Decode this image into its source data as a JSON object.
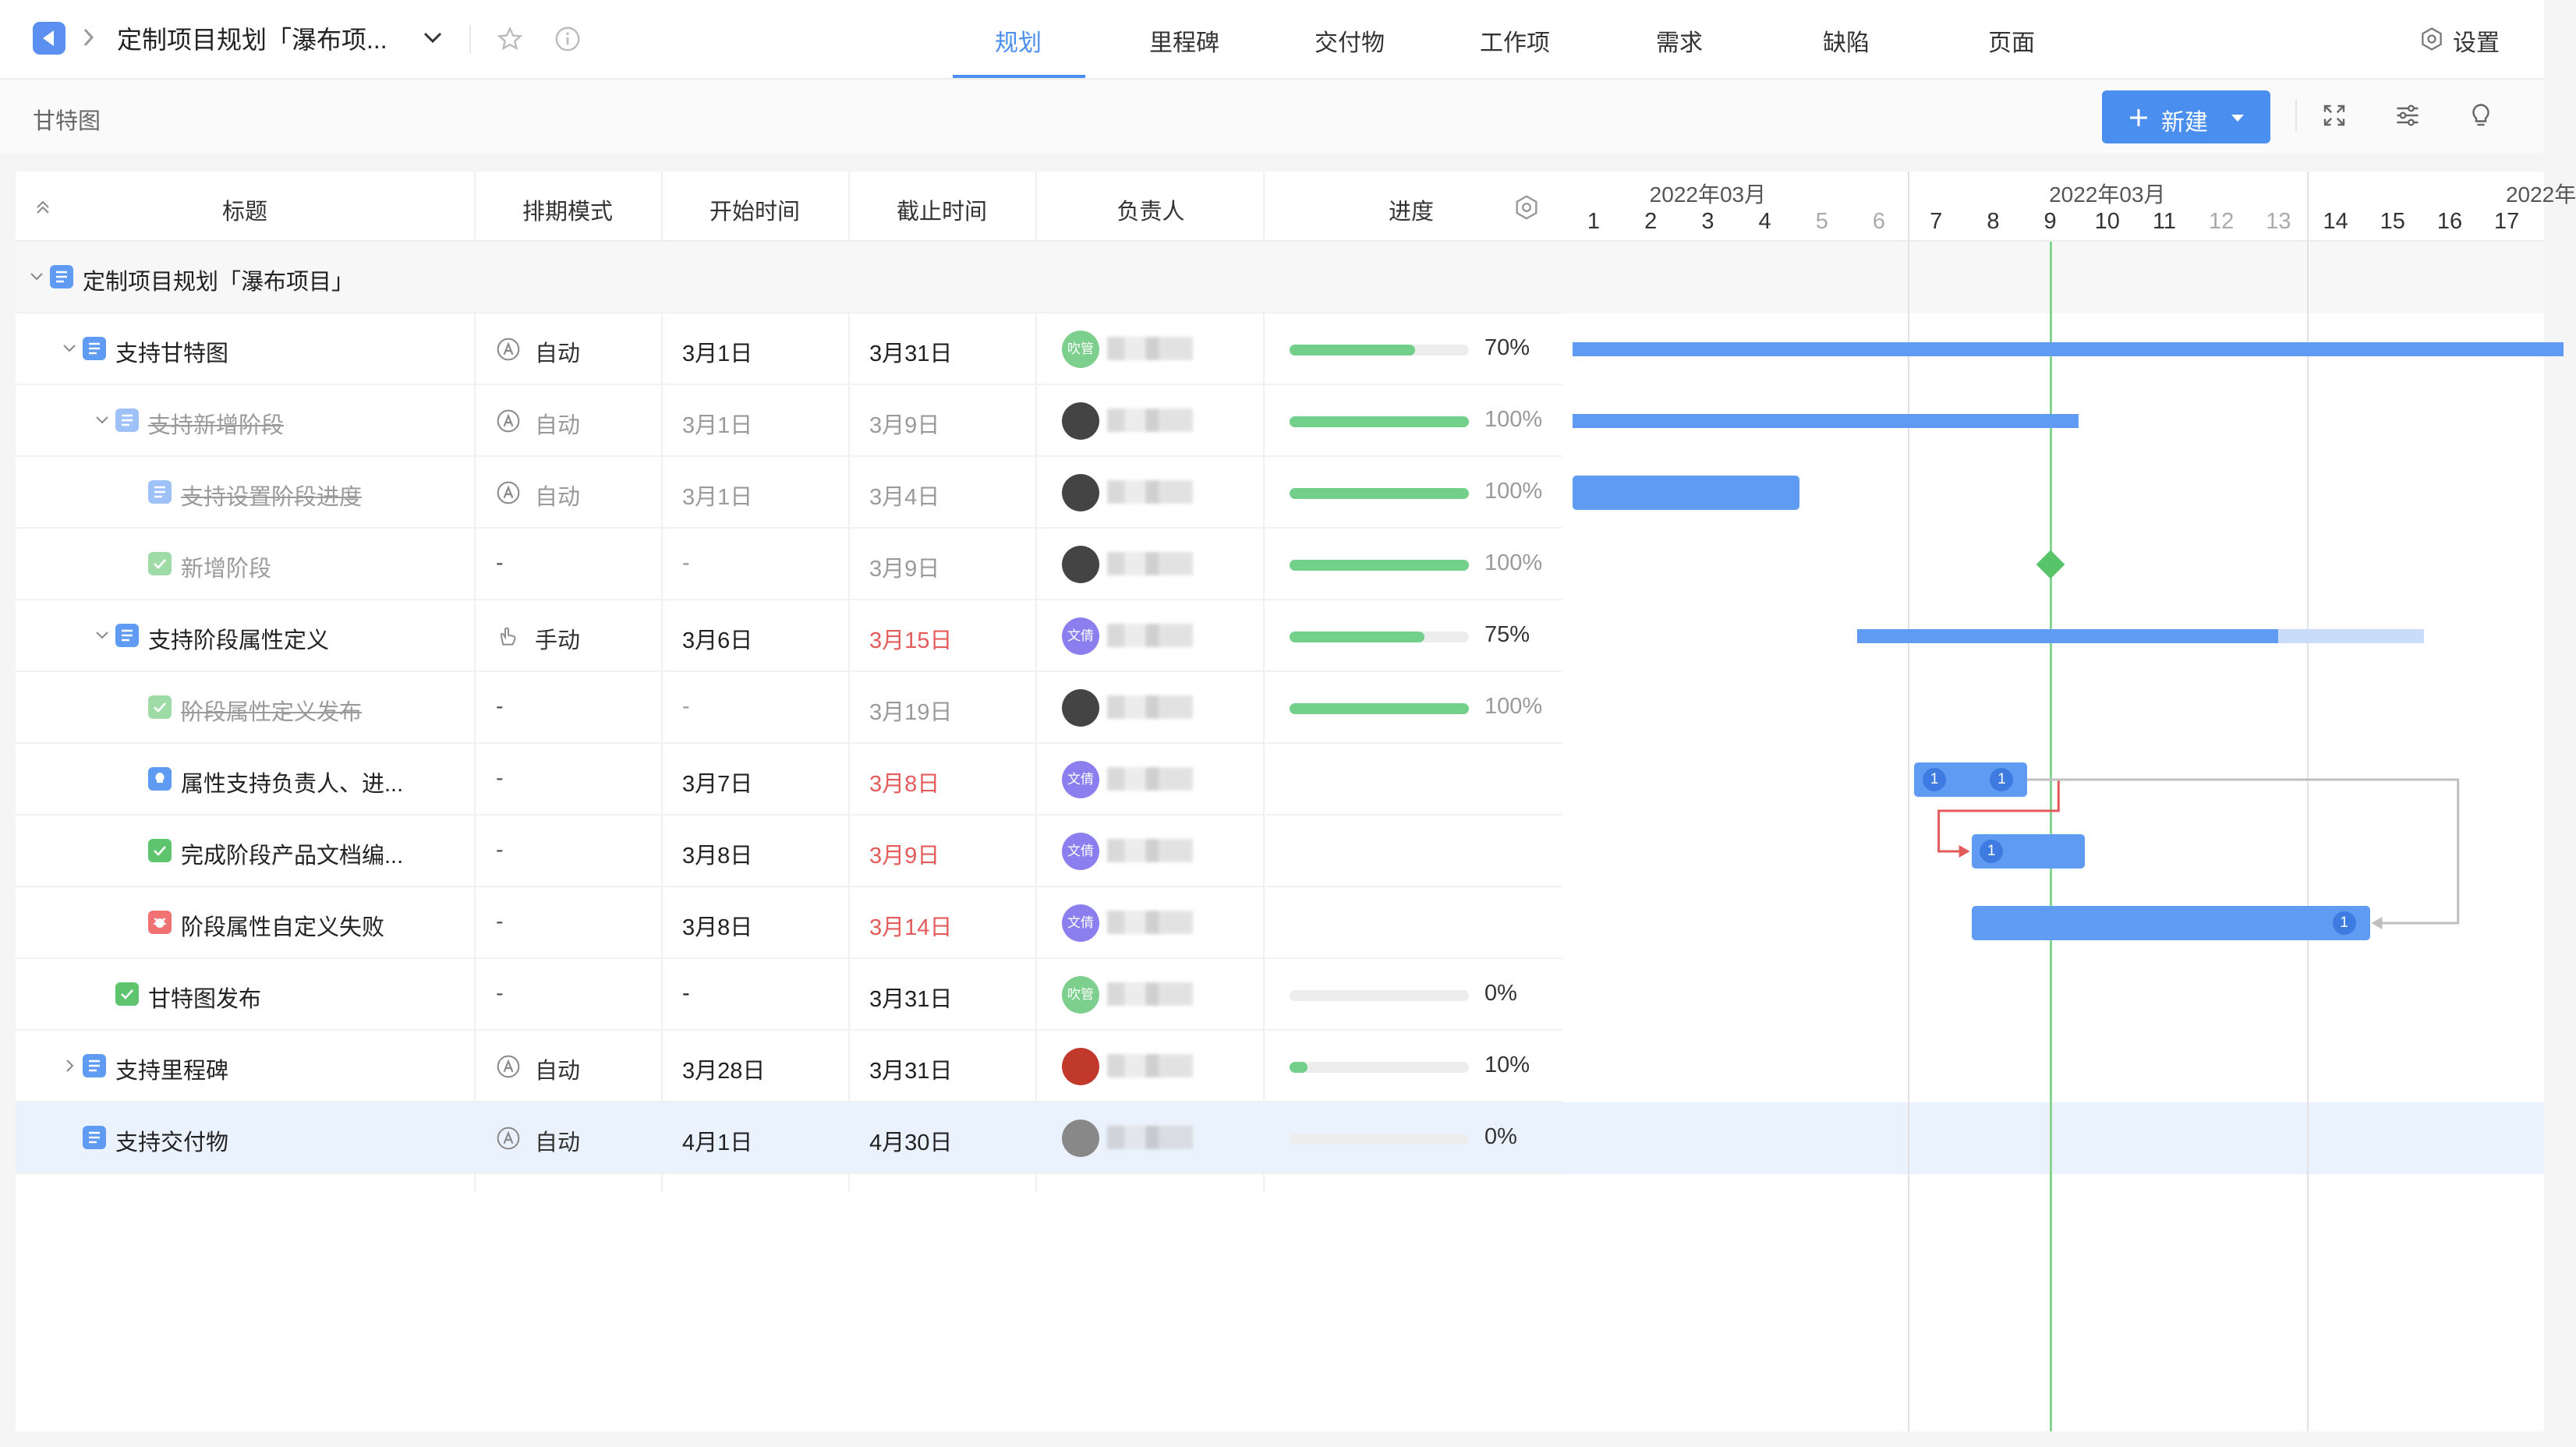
{
  "app": {
    "project_title": "定制项目规划「瀑布项...",
    "settings_label": "设置",
    "view_name": "甘特图",
    "new_button_label": "新建"
  },
  "tabs": [
    {
      "label": "规划",
      "active": true
    },
    {
      "label": "里程碑",
      "active": false
    },
    {
      "label": "交付物",
      "active": false
    },
    {
      "label": "工作项",
      "active": false
    },
    {
      "label": "需求",
      "active": false
    },
    {
      "label": "缺陷",
      "active": false
    },
    {
      "label": "页面",
      "active": false
    }
  ],
  "columns": {
    "title": "标题",
    "schedule": "排期模式",
    "start": "开始时间",
    "end": "截止时间",
    "assignee": "负责人",
    "progress": "进度"
  },
  "rows": [
    {
      "title": "定制项目规划「瀑布项目」",
      "type": "project",
      "level": 0,
      "expand": "down",
      "group": true
    },
    {
      "title": "支持甘特图",
      "type": "stage",
      "level": 1,
      "expand": "down",
      "schedule": "自动",
      "schedule_icon": "auto-icon",
      "start": "3月1日",
      "end": "3月31日",
      "avatar_text": "吹管",
      "avatar_color": "#7ccf8d",
      "progress": 70,
      "progress_text": "70%"
    },
    {
      "title": "支持新增阶段",
      "type": "stage",
      "level": 2,
      "expand": "down",
      "done": true,
      "strike": true,
      "schedule": "自动",
      "schedule_icon": "auto-icon",
      "start": "3月1日",
      "end": "3月9日",
      "avatar_text": "",
      "avatar_color": "#444444",
      "progress": 100,
      "progress_text": "100%"
    },
    {
      "title": "支持设置阶段进度",
      "type": "stage",
      "level": 3,
      "done": true,
      "strike": true,
      "schedule": "自动",
      "schedule_icon": "auto-icon",
      "start": "3月1日",
      "end": "3月4日",
      "avatar_text": "",
      "avatar_color": "#444444",
      "progress": 100,
      "progress_text": "100%"
    },
    {
      "title": "新增阶段",
      "type": "milestone",
      "level": 3,
      "done": true,
      "schedule": "-",
      "start": "-",
      "end": "3月9日",
      "avatar_text": "",
      "avatar_color": "#444444",
      "progress": 100,
      "progress_text": "100%"
    },
    {
      "title": "支持阶段属性定义",
      "type": "stage",
      "level": 2,
      "expand": "down",
      "schedule": "手动",
      "schedule_icon": "hand-icon",
      "start": "3月6日",
      "end": "3月15日",
      "end_overdue": true,
      "avatar_text": "文倩",
      "avatar_color": "#8b7ff0",
      "progress": 75,
      "progress_text": "75%"
    },
    {
      "title": "阶段属性定义发布",
      "type": "milestone",
      "level": 3,
      "done": true,
      "strike": true,
      "schedule": "-",
      "start": "-",
      "end": "3月19日",
      "avatar_text": "",
      "avatar_color": "#444444",
      "progress": 100,
      "progress_text": "100%"
    },
    {
      "title": "属性支持负责人、进...",
      "type": "requirement",
      "level": 3,
      "schedule": "-",
      "start": "3月7日",
      "end": "3月8日",
      "end_overdue": true,
      "avatar_text": "文倩",
      "avatar_color": "#8b7ff0"
    },
    {
      "title": "完成阶段产品文档编...",
      "type": "task",
      "level": 3,
      "schedule": "-",
      "start": "3月8日",
      "end": "3月9日",
      "end_overdue": true,
      "avatar_text": "文倩",
      "avatar_color": "#8b7ff0"
    },
    {
      "title": "阶段属性自定义失败",
      "type": "bug",
      "level": 3,
      "schedule": "-",
      "start": "3月8日",
      "end": "3月14日",
      "end_overdue": true,
      "avatar_text": "文倩",
      "avatar_color": "#8b7ff0"
    },
    {
      "title": "甘特图发布",
      "type": "milestone",
      "level": 2,
      "schedule": "-",
      "start": "-",
      "end": "3月31日",
      "avatar_text": "吹管",
      "avatar_color": "#7ccf8d",
      "progress": 0,
      "progress_text": "0%"
    },
    {
      "title": "支持里程碑",
      "type": "stage",
      "level": 1,
      "expand": "right",
      "schedule": "自动",
      "schedule_icon": "auto-icon",
      "start": "3月28日",
      "end": "3月31日",
      "avatar_text": "",
      "avatar_color": "#c0392b",
      "progress": 10,
      "progress_text": "10%"
    },
    {
      "title": "支持交付物",
      "type": "stage",
      "level": 1,
      "selected": true,
      "schedule": "自动",
      "schedule_icon": "auto-icon",
      "start": "4月1日",
      "end": "4月30日",
      "avatar_text": "",
      "avatar_color": "#888888",
      "progress": 0,
      "progress_text": "0%"
    }
  ],
  "gantt": {
    "months": [
      "2022年03月",
      "2022年03月",
      "2022年"
    ],
    "days": [
      "1",
      "2",
      "3",
      "4",
      "5",
      "6",
      "7",
      "8",
      "9",
      "10",
      "11",
      "12",
      "13",
      "14",
      "15",
      "16",
      "17"
    ],
    "weekend_days": [
      "5",
      "6",
      "12",
      "13"
    ],
    "today": "9",
    "dependency_badge": "1"
  },
  "colors": {
    "accent": "#4a8ef0",
    "bar": "#5f9bf2",
    "progress": "#73d08a",
    "overdue": "#e35b5b",
    "today": "#85d48f"
  }
}
